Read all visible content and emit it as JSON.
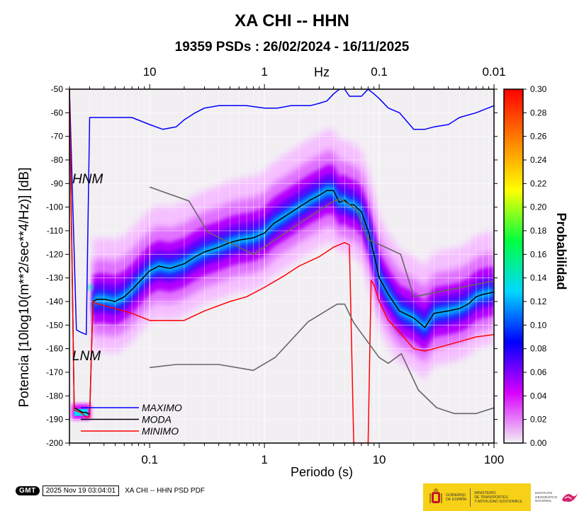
{
  "chart_data": {
    "type": "heatmap",
    "title": "XA CHI -- HHN",
    "subtitle": "19359 PSDs : 26/02/2024 - 16/11/2025",
    "xlabel": "Periodo (s)",
    "ylabel": "Potencia [10log10(m**2/sec**4/Hz)] [dB]",
    "top_axis_label": "Hz",
    "x_scale": "log",
    "xlim": [
      0.02,
      100
    ],
    "ylim": [
      -200,
      -50
    ],
    "x_ticks": [
      0.1,
      1,
      10,
      100
    ],
    "x_tick_labels": [
      "0.1",
      "1",
      "10",
      "100"
    ],
    "top_ticks_hz": [
      10,
      1,
      0.1,
      0.01
    ],
    "top_tick_labels": [
      "10",
      "1",
      "0.1",
      "0.01"
    ],
    "y_ticks": [
      -200,
      -190,
      -180,
      -170,
      -160,
      -150,
      -140,
      -130,
      -120,
      -110,
      -100,
      -90,
      -80,
      -70,
      -60,
      -50
    ],
    "y_tick_labels": [
      "-200",
      "-190",
      "-180",
      "-170",
      "-160",
      "-150",
      "-140",
      "-130",
      "-120",
      "-110",
      "-100",
      "-90",
      "-80",
      "-70",
      "-60",
      "-50"
    ],
    "colorbar": {
      "label": "Probabilidad",
      "range": [
        0,
        0.3
      ],
      "ticks": [
        0.0,
        0.02,
        0.04,
        0.06,
        0.08,
        0.1,
        0.12,
        0.14,
        0.16,
        0.18,
        0.2,
        0.22,
        0.24,
        0.26,
        0.28,
        0.3
      ],
      "tick_labels": [
        "0.00",
        "0.02",
        "0.04",
        "0.06",
        "0.08",
        "0.10",
        "0.12",
        "0.14",
        "0.16",
        "0.18",
        "0.20",
        "0.22",
        "0.24",
        "0.26",
        "0.28",
        "0.30"
      ],
      "colors": [
        "#f2f0f4",
        "#d800ff",
        "#0000ff",
        "#00d8ff",
        "#00ff40",
        "#ffff00",
        "#ff8000",
        "#ff0000"
      ]
    },
    "annotations": {
      "hnm": "HNM",
      "lnm": "LNM"
    },
    "legend": {
      "placement": "bottom-left",
      "entries": [
        {
          "label": "MAXIMO",
          "color": "#0000ff"
        },
        {
          "label": "MODA",
          "color": "#000000"
        },
        {
          "label": "MINIMO",
          "color": "#ff0000"
        }
      ]
    },
    "series": [
      {
        "name": "MAXIMO",
        "color": "#0000ff",
        "x": [
          0.02,
          0.023,
          0.025,
          0.028,
          0.03,
          0.032,
          0.035,
          0.05,
          0.07,
          0.1,
          0.13,
          0.17,
          0.2,
          0.25,
          0.3,
          0.4,
          0.5,
          0.7,
          1,
          1.3,
          1.7,
          2,
          2.5,
          3,
          3.5,
          4,
          4.5,
          5,
          5.5,
          6,
          7,
          8,
          9,
          10,
          12,
          15,
          20,
          25,
          30,
          40,
          50,
          70,
          100
        ],
        "y": [
          -50,
          -152,
          -153,
          -154,
          -62,
          -62,
          -62,
          -62,
          -62,
          -65,
          -67,
          -66,
          -63,
          -60,
          -58,
          -57,
          -57,
          -57,
          -58,
          -58,
          -57,
          -57,
          -57,
          -56,
          -55,
          -52,
          -50,
          -50,
          -53,
          -53,
          -53,
          -50,
          -52,
          -54,
          -58,
          -60,
          -67,
          -67,
          -66,
          -65,
          -62,
          -60,
          -57
        ]
      },
      {
        "name": "MODA",
        "color": "#000000",
        "x": [
          0.02,
          0.022,
          0.024,
          0.026,
          0.028,
          0.03,
          0.032,
          0.035,
          0.04,
          0.05,
          0.06,
          0.07,
          0.08,
          0.1,
          0.12,
          0.15,
          0.2,
          0.25,
          0.3,
          0.4,
          0.5,
          0.6,
          0.8,
          1,
          1.2,
          1.5,
          2,
          2.5,
          3,
          3.5,
          4,
          4.5,
          5,
          5.5,
          6,
          7,
          8,
          9,
          10,
          12,
          15,
          20,
          25,
          30,
          40,
          50,
          60,
          70,
          80,
          100
        ],
        "y": [
          -50,
          -185,
          -186,
          -187,
          -187,
          -188,
          -140,
          -139,
          -139,
          -140,
          -138,
          -135,
          -132,
          -127,
          -125,
          -126,
          -124,
          -121,
          -119,
          -117,
          -115,
          -114,
          -113,
          -111,
          -107,
          -104,
          -100,
          -97,
          -95,
          -93,
          -93,
          -98,
          -97,
          -99,
          -99,
          -102,
          -110,
          -120,
          -130,
          -137,
          -144,
          -147,
          -151,
          -145,
          -144,
          -143,
          -141,
          -138,
          -137,
          -136
        ]
      },
      {
        "name": "MINIMO",
        "color": "#ff0000",
        "x": [
          0.02,
          0.022,
          0.025,
          0.028,
          0.03,
          0.032,
          0.035,
          0.05,
          0.07,
          0.1,
          0.15,
          0.2,
          0.3,
          0.5,
          0.7,
          1,
          1.5,
          2,
          3,
          4,
          5,
          5.5,
          6,
          6.5,
          7,
          8,
          8.5,
          9,
          10,
          12,
          15,
          20,
          25,
          30,
          50,
          70,
          100
        ],
        "y": [
          -50,
          -186,
          -187,
          -189,
          -189,
          -140,
          -141,
          -143,
          -145,
          -148,
          -148,
          -148,
          -144,
          -140,
          -138,
          -134,
          -129,
          -125,
          -121,
          -117,
          -115,
          -116,
          -200,
          -200,
          -200,
          -200,
          -131,
          -133,
          -140,
          -148,
          -153,
          -160,
          -161,
          -160,
          -157,
          -155,
          -154
        ]
      },
      {
        "name": "HNM",
        "color": "#666666",
        "x": [
          0.1,
          0.22,
          0.32,
          0.8,
          3.8,
          4.6,
          6.3,
          7.9,
          15.4,
          20,
          354.8
        ],
        "y": [
          -91.5,
          -97.4,
          -110.5,
          -120,
          -98,
          -96.5,
          -101,
          -113.5,
          -120,
          -138,
          -126
        ]
      },
      {
        "name": "LNM",
        "color": "#666666",
        "x": [
          0.1,
          0.17,
          0.4,
          0.8,
          1.24,
          2.4,
          4.3,
          5,
          6,
          10,
          12,
          15.6,
          21.9,
          31.6,
          45,
          70,
          101,
          154,
          328,
          600
        ],
        "y": [
          -168,
          -166.7,
          -166.7,
          -169.2,
          -163.7,
          -148.6,
          -141.1,
          -141.1,
          -149,
          -163.8,
          -166.2,
          -162.1,
          -177.5,
          -185,
          -187.5,
          -187.5,
          -185,
          -187.5,
          -187.5,
          -185
        ]
      }
    ]
  },
  "footer": {
    "logo": "GMT",
    "timestamp": "2025 Nov 19 03:04:01",
    "description": "XA CHI -- HHN PSD PDF"
  },
  "banner": {
    "gov_line1": "GOBIERNO",
    "gov_line2": "DE ESPAÑA",
    "ministry_line1": "MINISTERIO",
    "ministry_line2": "DE TRANSPORTES",
    "ministry_line3": "Y MOVILIDAD SOSTENIBLE",
    "inst_line1": "INSTITUTO",
    "inst_line2": "GEOGRÁFICO",
    "inst_line3": "NACIONAL"
  }
}
